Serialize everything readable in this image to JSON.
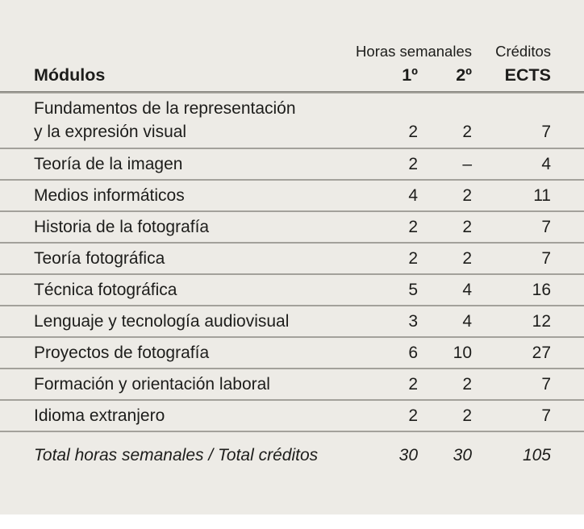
{
  "table": {
    "header": {
      "group_hours": "Horas semanales",
      "group_credits": "Créditos",
      "col_modules": "Módulos",
      "col_first": "1º",
      "col_second": "2º",
      "col_ects": "ECTS"
    },
    "rows": [
      {
        "module": "Fundamentos de la representación\ny la expresión visual",
        "h1": "2",
        "h2": "2",
        "ects": "7"
      },
      {
        "module": "Teoría de la imagen",
        "h1": "2",
        "h2": "–",
        "ects": "4"
      },
      {
        "module": "Medios informáticos",
        "h1": "4",
        "h2": "2",
        "ects": "11"
      },
      {
        "module": "Historia de la fotografía",
        "h1": "2",
        "h2": "2",
        "ects": "7"
      },
      {
        "module": "Teoría fotográfica",
        "h1": "2",
        "h2": "2",
        "ects": "7"
      },
      {
        "module": "Técnica fotográfica",
        "h1": "5",
        "h2": "4",
        "ects": "16"
      },
      {
        "module": "Lenguaje y tecnología audiovisual",
        "h1": "3",
        "h2": "4",
        "ects": "12"
      },
      {
        "module": "Proyectos de fotografía",
        "h1": "6",
        "h2": "10",
        "ects": "27"
      },
      {
        "module": "Formación y orientación laboral",
        "h1": "2",
        "h2": "2",
        "ects": "7"
      },
      {
        "module": "Idioma extranjero",
        "h1": "2",
        "h2": "2",
        "ects": "7"
      }
    ],
    "total": {
      "label": "Total horas semanales / Total créditos",
      "h1": "30",
      "h2": "30",
      "ects": "105"
    }
  },
  "colors": {
    "background": "#edebe6",
    "text": "#1d1d1b",
    "row_divider": "#a3a19b",
    "header_divider": "#7f7d77"
  }
}
